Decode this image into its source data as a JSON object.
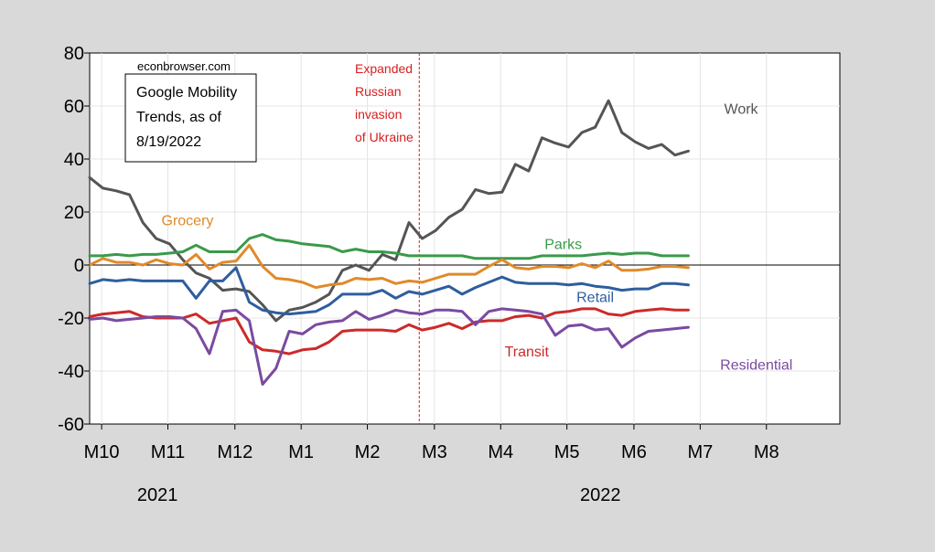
{
  "chart_data": {
    "type": "line",
    "source_note": "econbrowser.com",
    "title_box": [
      "Google Mobility",
      "Trends, as of",
      "8/19/2022"
    ],
    "annotation": {
      "lines": [
        "Expanded",
        "Russian",
        "invasion",
        "of Ukraine"
      ],
      "x": 2022.148,
      "color": "#d42020"
    },
    "ylim": [
      -60,
      80
    ],
    "yticks": [
      -60,
      -40,
      -20,
      0,
      20,
      40,
      60,
      80
    ],
    "xlim": [
      2021.735,
      2022.675
    ],
    "xticks": [
      {
        "label": "M10",
        "x": 2021.75
      },
      {
        "label": "M11",
        "x": 2021.833
      },
      {
        "label": "M12",
        "x": 2021.917
      },
      {
        "label": "M1",
        "x": 2022.0
      },
      {
        "label": "M2",
        "x": 2022.083
      },
      {
        "label": "M3",
        "x": 2022.167
      },
      {
        "label": "M4",
        "x": 2022.25
      },
      {
        "label": "M5",
        "x": 2022.333
      },
      {
        "label": "M6",
        "x": 2022.417
      },
      {
        "label": "M7",
        "x": 2022.5
      },
      {
        "label": "M8",
        "x": 2022.583
      }
    ],
    "year_labels": [
      {
        "label": "2021",
        "x": 2021.82
      },
      {
        "label": "2022",
        "x": 2022.375
      }
    ],
    "x_start": 2021.735,
    "x_step": 0.01667,
    "series": [
      {
        "name": "Work",
        "color": "#555555",
        "label_pos": {
          "x": 2022.53,
          "y": 57
        },
        "values": [
          33,
          29,
          28,
          26.5,
          16,
          10,
          8,
          2,
          -3,
          -5,
          -9.5,
          -9,
          -10,
          -15,
          -21,
          -17,
          -16,
          -14,
          -11,
          -2,
          0,
          -2,
          4,
          2,
          16,
          10,
          13,
          18,
          21,
          28.5,
          27,
          27.5,
          38,
          35.5,
          48,
          46,
          44.5,
          50,
          52,
          62,
          50,
          46.5,
          44,
          45.5,
          41.5,
          43
        ]
      },
      {
        "name": "Parks",
        "color": "#3a9a4a",
        "label_pos": {
          "x": 2022.305,
          "y": 6
        },
        "values": [
          3.5,
          3.5,
          4,
          3.5,
          4,
          4,
          4.5,
          5,
          7.5,
          5,
          5,
          5,
          10,
          11.5,
          9.5,
          9,
          8,
          7.5,
          7,
          5,
          6,
          5,
          5,
          4.5,
          3.5,
          3.5,
          3.5,
          3.5,
          3.5,
          2.5,
          2.5,
          2.5,
          2.5,
          2.5,
          3.5,
          3.5,
          3.5,
          3.5,
          4,
          4.5,
          4,
          4.5,
          4.5,
          3.5,
          3.5,
          3.5
        ]
      },
      {
        "name": "Grocery",
        "color": "#e08a2a",
        "label_pos": {
          "x": 2021.825,
          "y": 15
        },
        "values": [
          0,
          2.5,
          1,
          1,
          0,
          2,
          0.5,
          0,
          4,
          -1.5,
          1,
          1.5,
          7.5,
          -0.5,
          -5,
          -5.5,
          -6.5,
          -8.5,
          -7.5,
          -7,
          -5,
          -5.5,
          -5,
          -7,
          -6,
          -6.5,
          -5,
          -3.5,
          -3.5,
          -3.5,
          -0.5,
          2,
          -1,
          -1.5,
          -0.5,
          -0.5,
          -1,
          0.5,
          -1,
          1.5,
          -2,
          -2,
          -1.5,
          -0.5,
          -0.5,
          -1
        ]
      },
      {
        "name": "Retail",
        "color": "#2e5e9e",
        "label_pos": {
          "x": 2022.345,
          "y": -14
        },
        "values": [
          -7,
          -5.5,
          -6,
          -5.5,
          -6,
          -6,
          -6,
          -6,
          -12.5,
          -6,
          -6,
          -1,
          -14,
          -17,
          -18,
          -18.5,
          -18,
          -17.5,
          -15,
          -11,
          -11,
          -11,
          -9.5,
          -12.5,
          -10,
          -11,
          -9.5,
          -8,
          -11,
          -8.5,
          -6.5,
          -4.5,
          -6.5,
          -7,
          -7,
          -7,
          -7.5,
          -7,
          -8,
          -8.5,
          -9.5,
          -9,
          -9,
          -7,
          -7,
          -7.5
        ]
      },
      {
        "name": "Transit",
        "color": "#cc2a2a",
        "label_pos": {
          "x": 2022.255,
          "y": -34.5
        },
        "values": [
          -19.5,
          -18.5,
          -18,
          -17.5,
          -19.5,
          -20,
          -20,
          -20,
          -18.5,
          -22,
          -21,
          -20,
          -29,
          -32,
          -32.5,
          -33.5,
          -32,
          -31.5,
          -29,
          -25,
          -24.5,
          -24.5,
          -24.5,
          -25,
          -22.5,
          -24.5,
          -23.5,
          -22,
          -24,
          -21.5,
          -21,
          -21,
          -19.5,
          -19,
          -20,
          -18,
          -17.5,
          -16.5,
          -16.5,
          -18.5,
          -19,
          -17.5,
          -17,
          -16.5,
          -17,
          -17
        ]
      },
      {
        "name": "Residential",
        "color": "#7a4aa0",
        "label_pos": {
          "x": 2022.525,
          "y": -39.5
        },
        "values": [
          -20.5,
          -20,
          -21,
          -20.5,
          -20,
          -19.5,
          -19.5,
          -20,
          -24,
          -33.5,
          -17.5,
          -17,
          -21,
          -45,
          -39,
          -25,
          -26,
          -22.5,
          -21.5,
          -21,
          -17.5,
          -20.5,
          -19,
          -17,
          -18,
          -18.5,
          -17,
          -17,
          -17.5,
          -22.5,
          -17.5,
          -16.5,
          -17,
          -17.5,
          -18.5,
          -26.5,
          -23,
          -22.5,
          -24.5,
          -24,
          -31,
          -27.5,
          -25,
          -24.5,
          -24,
          -23.5
        ]
      }
    ]
  }
}
